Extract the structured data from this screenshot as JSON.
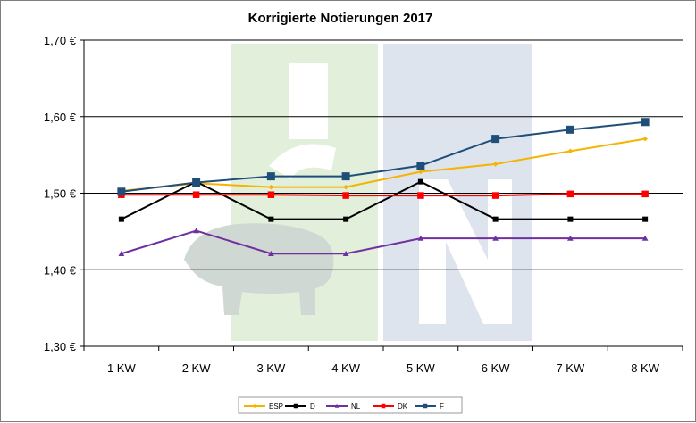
{
  "chart_data": {
    "type": "line",
    "title": "Korrigierte Notierungen 2017",
    "categories": [
      "1 KW",
      "2 KW",
      "3 KW",
      "4 KW",
      "5 KW",
      "6 KW",
      "7 KW",
      "8 KW"
    ],
    "y_ticks": [
      "1,30 €",
      "1,40 €",
      "1,50 €",
      "1,60 €",
      "1,70 €"
    ],
    "ylim": [
      1.3,
      1.7
    ],
    "grid": true,
    "legend_position": "bottom",
    "series": [
      {
        "name": "ESP",
        "color": "#f5b400",
        "marker": "diamond",
        "values": [
          1.503,
          1.513,
          1.508,
          1.508,
          1.528,
          1.538,
          1.555,
          1.571
        ]
      },
      {
        "name": "D",
        "color": "#000000",
        "marker": "square",
        "values": [
          1.466,
          1.515,
          1.466,
          1.466,
          1.515,
          1.466,
          1.466,
          1.466
        ]
      },
      {
        "name": "NL",
        "color": "#7030a0",
        "marker": "triangle",
        "values": [
          1.421,
          1.451,
          1.421,
          1.421,
          1.441,
          1.441,
          1.441,
          1.441
        ]
      },
      {
        "name": "DK",
        "color": "#ff0000",
        "marker": "square",
        "values": [
          1.498,
          1.498,
          1.498,
          1.497,
          1.497,
          1.497,
          1.499,
          1.499
        ]
      },
      {
        "name": "F",
        "color": "#1f4e79",
        "marker": "square",
        "values": [
          1.502,
          1.514,
          1.522,
          1.522,
          1.536,
          1.571,
          1.583,
          1.593
        ]
      }
    ],
    "watermark_colors": {
      "green": "#e2efda",
      "blue": "#dde4ee"
    }
  }
}
